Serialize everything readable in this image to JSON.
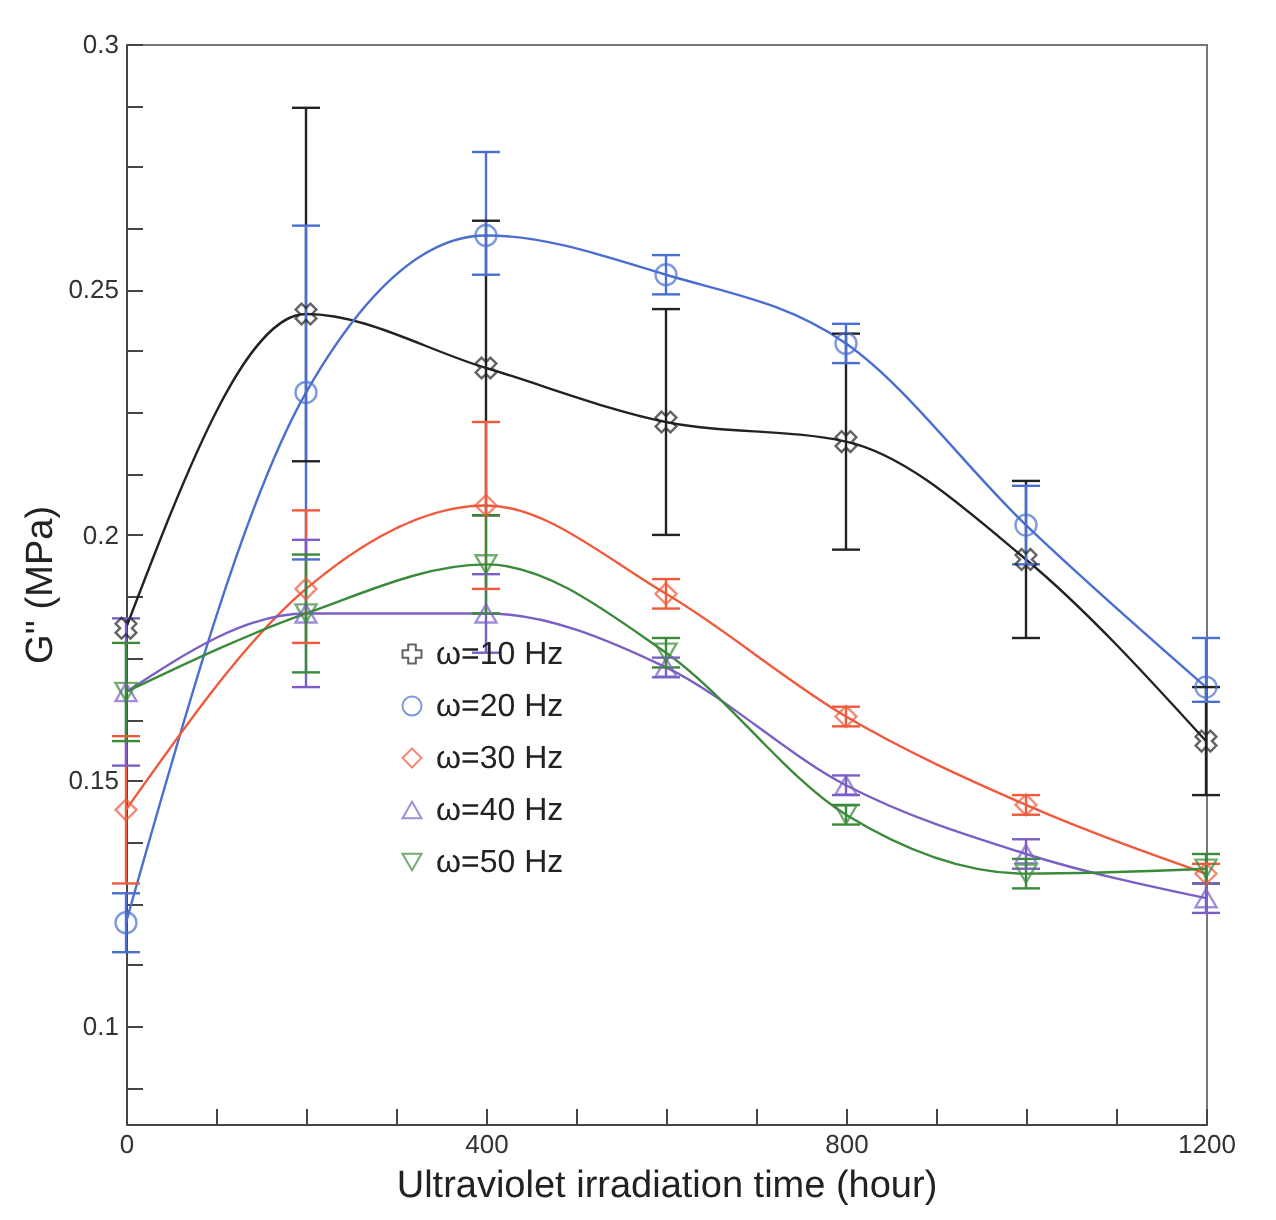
{
  "chart_data": {
    "type": "line",
    "xlabel": "Ultraviolet irradiation time (hour)",
    "ylabel": "G'' (MPa)",
    "x": [
      0,
      200,
      400,
      600,
      800,
      1000,
      1200
    ],
    "xlim": [
      0,
      1200
    ],
    "xticks": [
      0,
      {
        "value": 100,
        "label": null
      },
      {
        "value": 200,
        "label": null
      },
      {
        "value": 300,
        "label": null
      },
      400,
      {
        "value": 500,
        "label": null
      },
      {
        "value": 600,
        "label": null
      },
      {
        "value": 700,
        "label": null
      },
      800,
      {
        "value": 900,
        "label": null
      },
      {
        "value": 1000,
        "label": null
      },
      {
        "value": 1100,
        "label": null
      },
      1200
    ],
    "ylim": [
      0.08,
      0.3
    ],
    "yticks": [
      {
        "value": 0.0875,
        "label": null
      },
      0.1,
      {
        "value": 0.1125,
        "label": null
      },
      {
        "value": 0.125,
        "label": null
      },
      {
        "value": 0.1375,
        "label": null
      },
      0.15,
      {
        "value": 0.1625,
        "label": null
      },
      {
        "value": 0.175,
        "label": null
      },
      {
        "value": 0.1875,
        "label": null
      },
      0.2,
      {
        "value": 0.2125,
        "label": null
      },
      {
        "value": 0.225,
        "label": null
      },
      {
        "value": 0.2375,
        "label": null
      },
      0.25,
      {
        "value": 0.2625,
        "label": null
      },
      {
        "value": 0.275,
        "label": null
      },
      {
        "value": 0.2875,
        "label": null
      },
      0.3
    ],
    "grid": false,
    "legend": "bottom left",
    "line_style": "solid",
    "series": [
      {
        "name": "ω=10 Hz",
        "color": "#222222",
        "marker": "cross",
        "values": [
          0.181,
          0.245,
          0.234,
          0.223,
          0.219,
          0.195,
          0.158
        ],
        "errors": [
          null,
          [
            0.215,
            0.287
          ],
          0.03,
          0.023,
          0.022,
          0.016,
          0.011
        ]
      },
      {
        "name": "ω=20 Hz",
        "color": "#4a6fd0",
        "marker": "circle",
        "values": [
          0.121,
          0.229,
          0.261,
          0.253,
          0.239,
          0.202,
          0.169
        ],
        "errors": [
          0.006,
          0.034,
          [
            0.253,
            0.278
          ],
          0.004,
          0.004,
          0.008,
          [
            0.166,
            0.179
          ]
        ]
      },
      {
        "name": "ω=30 Hz",
        "color": "#f05a3c",
        "marker": "diamond",
        "values": [
          0.144,
          0.189,
          0.206,
          0.188,
          0.163,
          0.145,
          0.131
        ],
        "errors": [
          0.015,
          [
            0.178,
            0.205
          ],
          0.017,
          0.003,
          0.002,
          0.002,
          0.002
        ]
      },
      {
        "name": "ω=40 Hz",
        "color": "#7b5fc6",
        "marker": "triangle",
        "values": [
          0.168,
          0.184,
          0.184,
          0.173,
          0.149,
          0.135,
          0.126
        ],
        "errors": [
          0.015,
          0.015,
          0.008,
          0.002,
          0.002,
          0.003,
          0.003
        ]
      },
      {
        "name": "ω=50 Hz",
        "color": "#3a8a3a",
        "marker": "triangle-down",
        "values": [
          0.168,
          0.184,
          0.194,
          0.176,
          0.143,
          0.131,
          0.132
        ],
        "errors": [
          0.01,
          0.012,
          0.01,
          0.003,
          0.002,
          0.003,
          0.003
        ]
      }
    ]
  }
}
